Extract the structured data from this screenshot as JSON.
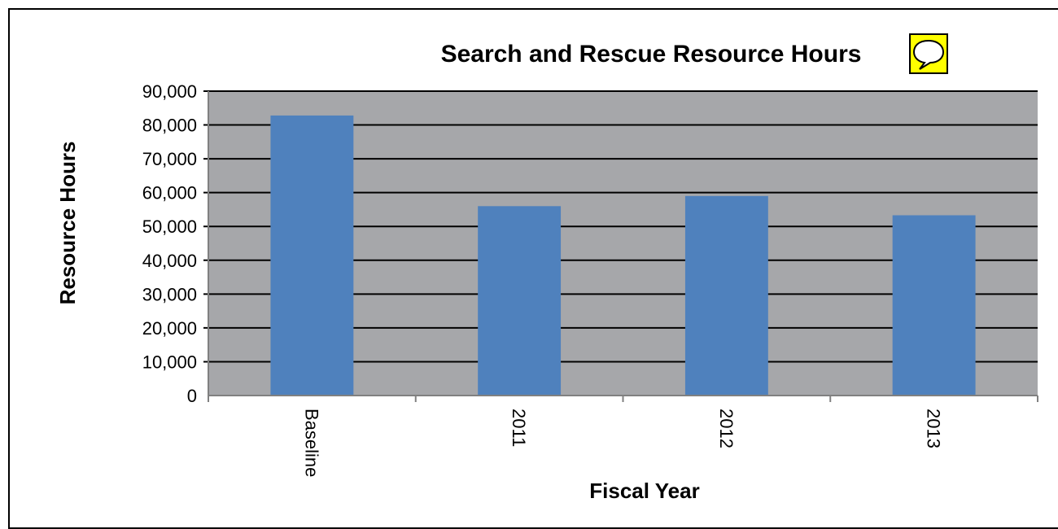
{
  "chart_data": {
    "type": "bar",
    "title": "Search and Rescue Resource Hours",
    "title_icon": "speech-bubble-icon",
    "xlabel": "Fiscal Year",
    "ylabel": "Resource Hours",
    "categories": [
      "Baseline",
      "2011",
      "2012",
      "2013"
    ],
    "values": [
      82800,
      56000,
      59000,
      53300
    ],
    "ylim": [
      0,
      90000
    ],
    "yticks": [
      0,
      10000,
      20000,
      30000,
      40000,
      50000,
      60000,
      70000,
      80000,
      90000
    ],
    "ytick_labels": [
      "0",
      "10,000",
      "20,000",
      "30,000",
      "40,000",
      "50,000",
      "60,000",
      "70,000",
      "80,000",
      "90,000"
    ],
    "grid": true,
    "legend": "none",
    "colors": {
      "bar": "#4f81bd",
      "plot_background": "#a6a7aa",
      "gridline": "#000000",
      "icon_fill": "#ffff00"
    }
  }
}
